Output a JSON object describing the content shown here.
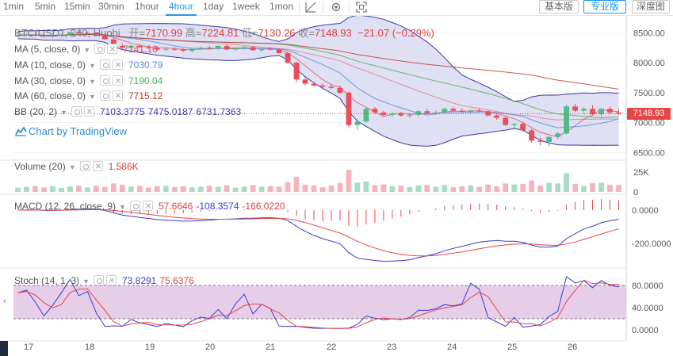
{
  "toolbar": {
    "timeframes": [
      "1min",
      "5min",
      "15min",
      "30min",
      "1hour",
      "4hour",
      "1day",
      "1week",
      "1mon"
    ],
    "active_timeframe": "4hour",
    "icons": [
      "trend-line-icon",
      "settings-icon",
      "fullscreen-icon"
    ],
    "version_buttons": [
      "基本版",
      "专业版",
      "深度图"
    ],
    "active_version": "专业版"
  },
  "ohlc": {
    "title": "BTC/USDT, 240, Huobi",
    "open_label": "开=",
    "open": "7170.99",
    "high_label": "高=",
    "high": "7224.81",
    "low_label": "低=",
    "low": "7130.26",
    "close_label": "收=",
    "close": "7148.93",
    "change": "−21.07 (−0.29%)"
  },
  "indicators": [
    {
      "name": "MA (5, close, 0)",
      "value": "7141.16",
      "color": "#e05a5a"
    },
    {
      "name": "MA (10, close, 0)",
      "value": "7030.79",
      "color": "#5b8bd9"
    },
    {
      "name": "MA (30, close, 0)",
      "value": "7190.04",
      "color": "#4caf50"
    },
    {
      "name": "MA (60, close, 0)",
      "value": "7715.12",
      "color": "#c0392b"
    },
    {
      "name": "BB (20, 2)",
      "values": [
        "7103.3775",
        "7475.0187",
        "6731.7363"
      ],
      "color": "#3a3aa8"
    }
  ],
  "tv_link": "Chart by TradingView",
  "price_badge": "7148.93",
  "volume": {
    "name": "Volume (20)",
    "value": "1.586K"
  },
  "macd": {
    "name": "MACD (12, 26, close, 9)",
    "values": [
      "57.6646",
      "-108.3574",
      "-166.0220"
    ]
  },
  "stoch": {
    "name": "Stoch (14, 1, 3)",
    "values": [
      "73.8291",
      "75.6376"
    ]
  },
  "axes": {
    "price_ticks": [
      "8500.00",
      "8000.00",
      "7500.00",
      "7000.00",
      "6500.00"
    ],
    "volume_ticks": [
      "25K",
      "0"
    ],
    "macd_ticks": [
      "0.0000",
      "-200.0000"
    ],
    "stoch_ticks": [
      "80.0000",
      "40.0000",
      "0.0000"
    ],
    "x_ticks": [
      "17",
      "18",
      "19",
      "20",
      "21",
      "22",
      "23",
      "24",
      "25",
      "26"
    ]
  },
  "colors": {
    "up": "#53b987",
    "down": "#eb4d5c",
    "up_vol": "#a8dcc6",
    "down_vol": "#f4b4bb",
    "bb_fill": "#d3d3ef",
    "stoch_fill": "#ddbde0"
  },
  "chart_data": {
    "type": "candlestick",
    "x_unit": "4-hour bars",
    "candles": [
      [
        8450,
        8480,
        8420,
        8460
      ],
      [
        8460,
        8490,
        8440,
        8470
      ],
      [
        8470,
        8500,
        8450,
        8460
      ],
      [
        8460,
        8470,
        8420,
        8440
      ],
      [
        8440,
        8470,
        8410,
        8450
      ],
      [
        8450,
        8480,
        8430,
        8470
      ],
      [
        8470,
        8520,
        8450,
        8510
      ],
      [
        8510,
        8540,
        8480,
        8490
      ],
      [
        8490,
        8520,
        8470,
        8500
      ],
      [
        8500,
        8510,
        8440,
        8450
      ],
      [
        8450,
        8470,
        8380,
        8390
      ],
      [
        8390,
        8420,
        8260,
        8280
      ],
      [
        8280,
        8320,
        8230,
        8250
      ],
      [
        8250,
        8300,
        8220,
        8280
      ],
      [
        8280,
        8310,
        8240,
        8260
      ],
      [
        8260,
        8290,
        8230,
        8250
      ],
      [
        8250,
        8280,
        8200,
        8220
      ],
      [
        8220,
        8250,
        8190,
        8230
      ],
      [
        8230,
        8260,
        8200,
        8220
      ],
      [
        8220,
        8240,
        8180,
        8200
      ],
      [
        8200,
        8240,
        8170,
        8230
      ],
      [
        8230,
        8270,
        8210,
        8250
      ],
      [
        8250,
        8280,
        8220,
        8240
      ],
      [
        8240,
        8290,
        8220,
        8280
      ],
      [
        8280,
        8300,
        8210,
        8220
      ],
      [
        8220,
        8260,
        8200,
        8240
      ],
      [
        8240,
        8280,
        8220,
        8260
      ],
      [
        8260,
        8280,
        8200,
        8210
      ],
      [
        8210,
        8250,
        8180,
        8230
      ],
      [
        8230,
        8260,
        8200,
        8220
      ],
      [
        8220,
        8240,
        8150,
        8160
      ],
      [
        8160,
        8180,
        7980,
        8000
      ],
      [
        8000,
        8020,
        7680,
        7720
      ],
      [
        7720,
        7760,
        7620,
        7650
      ],
      [
        7650,
        7680,
        7600,
        7620
      ],
      [
        7620,
        7650,
        7580,
        7600
      ],
      [
        7600,
        7650,
        7560,
        7580
      ],
      [
        7580,
        7620,
        7480,
        7500
      ],
      [
        7500,
        7520,
        6920,
        6960
      ],
      [
        6960,
        7050,
        6880,
        7020
      ],
      [
        7020,
        7250,
        7000,
        7230
      ],
      [
        7230,
        7260,
        7150,
        7170
      ],
      [
        7170,
        7200,
        7100,
        7130
      ],
      [
        7130,
        7180,
        7090,
        7150
      ],
      [
        7150,
        7180,
        7100,
        7120
      ],
      [
        7120,
        7160,
        7080,
        7130
      ],
      [
        7130,
        7200,
        7100,
        7190
      ],
      [
        7190,
        7230,
        7150,
        7160
      ],
      [
        7160,
        7200,
        7130,
        7170
      ],
      [
        7170,
        7250,
        7150,
        7230
      ],
      [
        7230,
        7260,
        7190,
        7200
      ],
      [
        7200,
        7240,
        7170,
        7180
      ],
      [
        7180,
        7220,
        7150,
        7200
      ],
      [
        7200,
        7240,
        7170,
        7190
      ],
      [
        7190,
        7210,
        7100,
        7120
      ],
      [
        7120,
        7150,
        7050,
        7080
      ],
      [
        7080,
        7100,
        6940,
        6960
      ],
      [
        6960,
        7000,
        6900,
        6980
      ],
      [
        6980,
        7010,
        6850,
        6870
      ],
      [
        6870,
        6900,
        6660,
        6700
      ],
      [
        6700,
        6750,
        6620,
        6680
      ],
      [
        6680,
        6780,
        6600,
        6760
      ],
      [
        6760,
        6850,
        6720,
        6820
      ],
      [
        6820,
        7300,
        6800,
        7270
      ],
      [
        7270,
        7310,
        7180,
        7200
      ],
      [
        7200,
        7260,
        7150,
        7230
      ],
      [
        7230,
        7290,
        7120,
        7140
      ],
      [
        7140,
        7250,
        7100,
        7230
      ],
      [
        7230,
        7270,
        7140,
        7170
      ],
      [
        7170,
        7225,
        7130,
        7149
      ]
    ]
  }
}
